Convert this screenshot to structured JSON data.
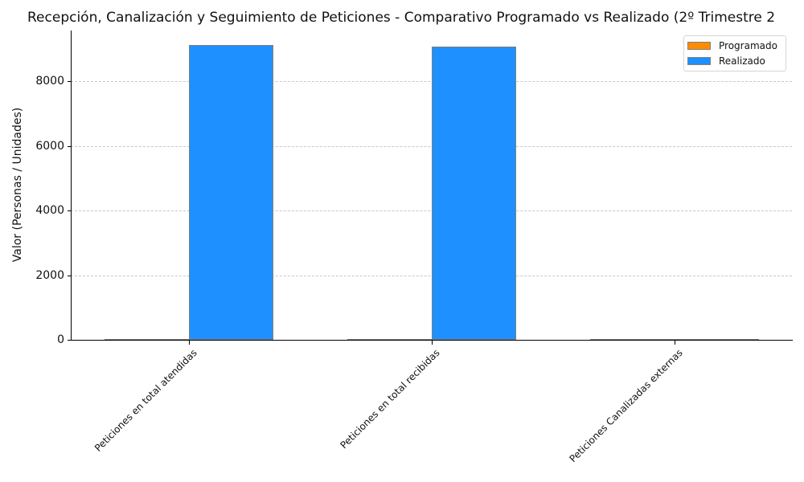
{
  "chart_data": {
    "type": "bar",
    "title": "Recepción, Canalización y Seguimiento de Peticiones - Comparativo Programado vs Realizado (2º Trimestre 2",
    "xlabel": "",
    "ylabel": "Valor (Personas / Unidades)",
    "categories": [
      "Peticiones en total atendidas",
      "Peticiones en total recibidas",
      "Peticiones Canalizadas externas"
    ],
    "series": [
      {
        "name": "Programado",
        "color": "#ff8c00",
        "values": [
          1,
          1,
          1
        ]
      },
      {
        "name": "Realizado",
        "color": "#1e90ff",
        "values": [
          9120,
          9070,
          20
        ]
      }
    ],
    "yticks": [
      "0",
      "2000",
      "4000",
      "6000",
      "8000"
    ],
    "ylim": [
      0,
      9580
    ],
    "grid": "y-dashed",
    "legend_position": "upper right"
  }
}
